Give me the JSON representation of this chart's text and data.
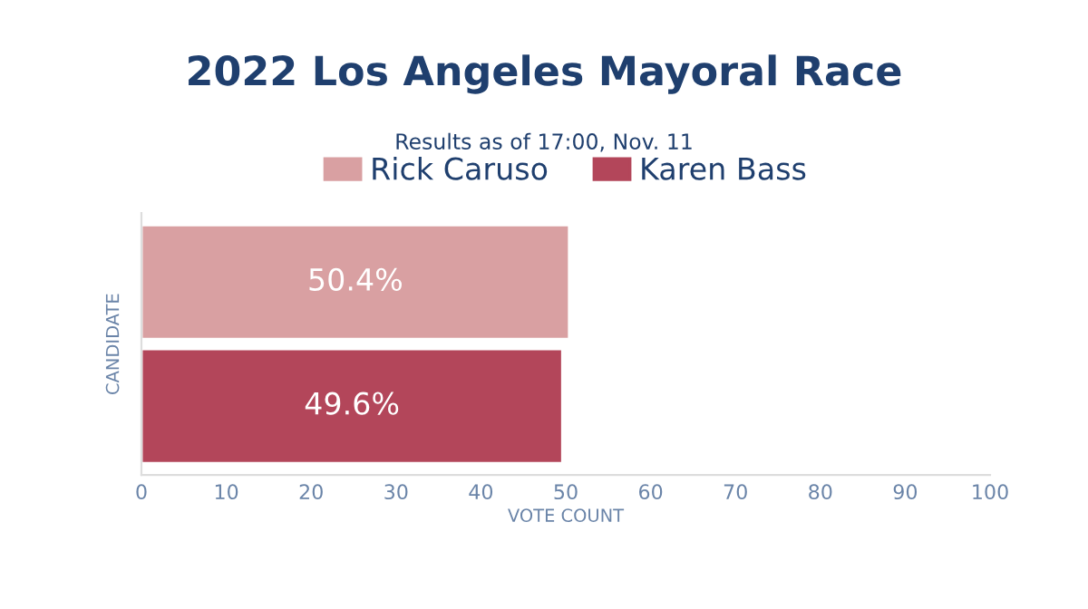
{
  "chart_data": {
    "type": "bar",
    "orientation": "horizontal",
    "title": "2022 Los Angeles Mayoral Race",
    "subtitle": "Results as of 17:00, Nov. 11",
    "xlabel": "VOTE COUNT",
    "ylabel": "CANDIDATE",
    "categories": [
      null
    ],
    "series": [
      {
        "name": "Rick Caruso",
        "color": "#d9a0a2",
        "values": [
          50.4
        ],
        "value_labels": [
          "50.4%"
        ]
      },
      {
        "name": "Karen Bass",
        "color": "#b3465a",
        "values": [
          49.6
        ],
        "value_labels": [
          "49.6%"
        ]
      }
    ],
    "xlim": [
      0,
      100
    ],
    "xticks": [
      0,
      10,
      20,
      30,
      40,
      50,
      60,
      70,
      80,
      90,
      100
    ],
    "grid": false,
    "legend": "top"
  }
}
